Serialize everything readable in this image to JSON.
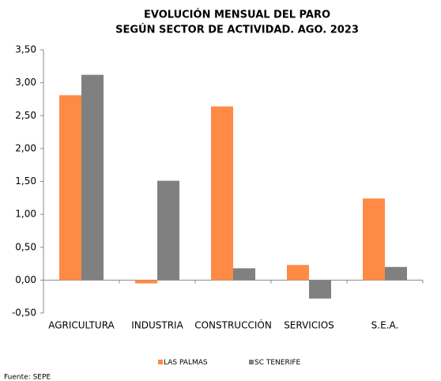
{
  "chart_data": {
    "type": "bar",
    "title": [
      "EVOLUCIÓN MENSUAL DEL PARO",
      "SEGÚN SECTOR DE ACTIVIDAD. AGO. 2023"
    ],
    "categories": [
      "AGRICULTURA",
      "INDUSTRIA",
      "CONSTRUCCIÓN",
      "SERVICIOS",
      "S.E.A."
    ],
    "series": [
      {
        "name": "LAS PALMAS",
        "color": "#ff8a45",
        "values": [
          2.81,
          -0.05,
          2.64,
          0.23,
          1.24
        ]
      },
      {
        "name": "SC TENERIFE",
        "color": "#808080",
        "values": [
          3.12,
          1.51,
          0.18,
          -0.28,
          0.2
        ]
      }
    ],
    "ylim": [
      -0.5,
      3.5
    ],
    "yticks": [
      {
        "value": -0.5,
        "label": "-0,50"
      },
      {
        "value": 0,
        "label": "0,00"
      },
      {
        "value": 0.5,
        "label": "0,50"
      },
      {
        "value": 1,
        "label": "1,00"
      },
      {
        "value": 1.5,
        "label": "1,50"
      },
      {
        "value": 2,
        "label": "2,00"
      },
      {
        "value": 2.5,
        "label": "2,50"
      },
      {
        "value": 3,
        "label": "3,00"
      },
      {
        "value": 3.5,
        "label": "3,50"
      }
    ],
    "legend": "bottom",
    "source": "Fuente: SEPE"
  }
}
